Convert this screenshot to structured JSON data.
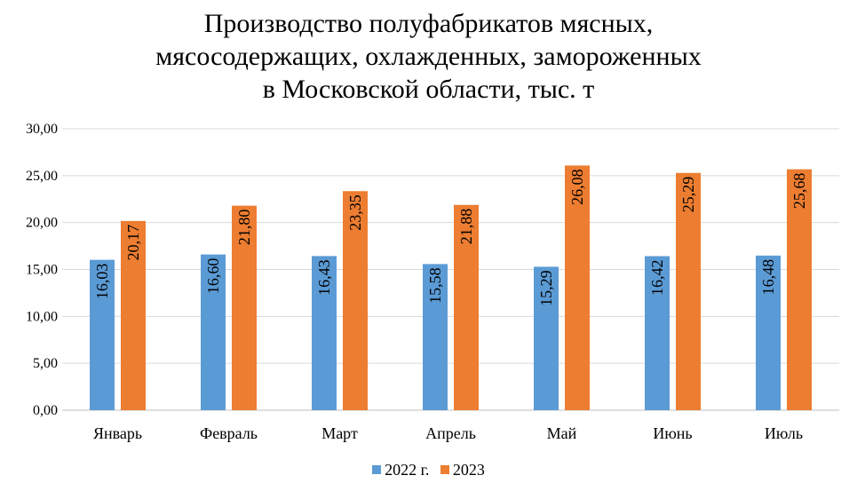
{
  "chart_data": {
    "type": "bar",
    "title_lines": [
      "Производство полуфабрикатов мясных,",
      "мясосодержащих, охлажденных, замороженных",
      "в Московской области, тыс. т"
    ],
    "categories": [
      "Январь",
      "Февраль",
      "Март",
      "Апрель",
      "Май",
      "Июнь",
      "Июль"
    ],
    "series": [
      {
        "name": "2022 г.",
        "color": "#5b9bd5",
        "values": [
          16.03,
          16.6,
          16.43,
          15.58,
          15.29,
          16.42,
          16.48
        ],
        "labels": [
          "16,03",
          "16,60",
          "16,43",
          "15,58",
          "15,29",
          "16,42",
          "16,48"
        ]
      },
      {
        "name": "2023",
        "color": "#ed7d31",
        "values": [
          20.17,
          21.8,
          23.35,
          21.88,
          26.08,
          25.29,
          25.68
        ],
        "labels": [
          "20,17",
          "21,80",
          "23,35",
          "21,88",
          "26,08",
          "25,29",
          "25,68"
        ]
      }
    ],
    "ylim": [
      0,
      30
    ],
    "yticks": [
      "0,00",
      "5,00",
      "10,00",
      "15,00",
      "20,00",
      "25,00",
      "30,00"
    ],
    "grid": true,
    "legend_position": "bottom"
  }
}
